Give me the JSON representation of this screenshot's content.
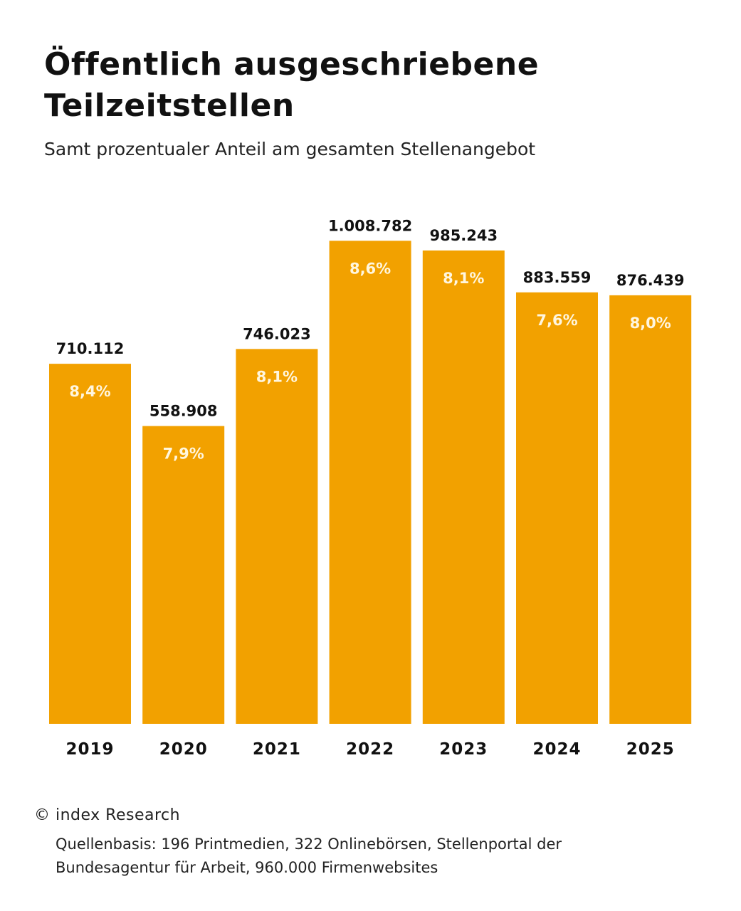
{
  "chart_data": {
    "type": "bar",
    "title": "Öffentlich ausgeschriebene Teilzeitstellen",
    "subtitle": "Samt prozentualer Anteil am gesamten Stellenangebot",
    "categories": [
      "2019",
      "2020",
      "2021",
      "2022",
      "2023",
      "2024",
      "2025"
    ],
    "values": [
      710112,
      558908,
      746023,
      1008782,
      985243,
      883559,
      876439
    ],
    "value_labels": [
      "710.112",
      "558.908",
      "746.023",
      "1.008.782",
      "985.243",
      "883.559",
      "876.439"
    ],
    "share_labels": [
      "8,4%",
      "7,9%",
      "8,1%",
      "8,6%",
      "8,1%",
      "7,6%",
      "8,0%"
    ],
    "xlabel": "",
    "ylabel": "",
    "grid": false,
    "colors": {
      "bar": "#F2A100",
      "share_text": "#FFF6DF",
      "text": "#111111"
    }
  },
  "footer": {
    "credit": "© index Research",
    "source": "Quellenbasis: 196 Printmedien, 322 Onlinebörsen, Stellenportal der Bundesagentur für Arbeit, 960.000 Firmenwebsites"
  }
}
